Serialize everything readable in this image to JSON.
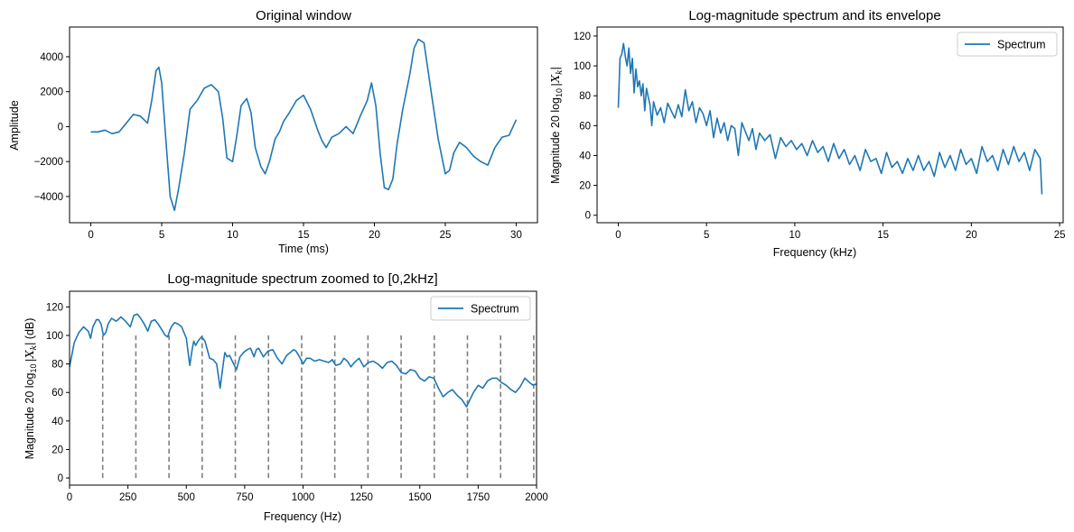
{
  "chart_data": [
    {
      "id": "wave",
      "type": "line",
      "title": "Original window",
      "xlabel": "Time (ms)",
      "ylabel": "Amplitude",
      "xlim": [
        -1.5,
        31.5
      ],
      "ylim": [
        -5500,
        5700
      ],
      "xticks": [
        0,
        5,
        10,
        15,
        20,
        25,
        30
      ],
      "xtick_labels": [
        "0",
        "5",
        "10",
        "15",
        "20",
        "25",
        "30"
      ],
      "yticks": [
        -4000,
        -2000,
        0,
        2000,
        4000
      ],
      "ytick_labels": [
        "−4000",
        "−2000",
        "0",
        "2000",
        "4000"
      ],
      "grid": false,
      "series": [
        {
          "color": "#1f77b4",
          "x": [
            0,
            0.5,
            1,
            1.5,
            2,
            2.5,
            3,
            3.5,
            4,
            4.3,
            4.6,
            4.8,
            5,
            5.3,
            5.6,
            5.9,
            6.2,
            6.6,
            7,
            7.5,
            8,
            8.5,
            9,
            9.3,
            9.6,
            10,
            10.3,
            10.6,
            11,
            11.3,
            11.6,
            12,
            12.3,
            12.6,
            13,
            13.3,
            13.6,
            14,
            14.5,
            15,
            15.5,
            16,
            16.3,
            16.6,
            17,
            17.5,
            18,
            18.5,
            19,
            19.5,
            19.8,
            20.1,
            20.4,
            20.7,
            21,
            21.3,
            21.6,
            22,
            22.5,
            22.8,
            23.1,
            23.5,
            24,
            24.5,
            25,
            25.3,
            25.6,
            26,
            26.5,
            27,
            27.5,
            28,
            28.5,
            29,
            29.5,
            30
          ],
          "y": [
            -300,
            -300,
            -200,
            -400,
            -300,
            200,
            700,
            600,
            200,
            1500,
            3200,
            3400,
            2500,
            -800,
            -4000,
            -4800,
            -3500,
            -1500,
            1000,
            1500,
            2200,
            2400,
            2000,
            500,
            -1800,
            -2000,
            -500,
            1200,
            1600,
            800,
            -1200,
            -2300,
            -2700,
            -2000,
            -700,
            -300,
            300,
            800,
            1500,
            1800,
            1000,
            -200,
            -800,
            -1200,
            -600,
            -400,
            0,
            -400,
            600,
            1500,
            2500,
            1200,
            -1500,
            -3500,
            -3600,
            -3000,
            -1000,
            1000,
            3000,
            4500,
            5000,
            4800,
            2000,
            -700,
            -2700,
            -2500,
            -1500,
            -900,
            -1200,
            -1700,
            -2000,
            -2200,
            -1200,
            -600,
            -500,
            400
          ]
        }
      ]
    },
    {
      "id": "spec",
      "type": "line",
      "title": "Log-magnitude spectrum and its envelope",
      "xlabel": "Frequency (kHz)",
      "ylabel_prefix": "Magnitude 20 log",
      "ylabel_sub": "10",
      "ylabel_suffix": "|X",
      "ylabel_sub2": "k",
      "ylabel_end": "|",
      "xlim": [
        -1.2,
        25.2
      ],
      "ylim": [
        -5,
        126
      ],
      "xticks": [
        0,
        5,
        10,
        15,
        20,
        25
      ],
      "xtick_labels": [
        "0",
        "5",
        "10",
        "15",
        "20",
        "25"
      ],
      "yticks": [
        0,
        20,
        40,
        60,
        80,
        100,
        120
      ],
      "ytick_labels": [
        "0",
        "20",
        "40",
        "60",
        "80",
        "100",
        "120"
      ],
      "legend": [
        "Spectrum"
      ],
      "legend_loc": "upper right",
      "grid": false,
      "series": [
        {
          "name": "Spectrum",
          "color": "#1f77b4",
          "x": [
            0,
            0.1,
            0.2,
            0.3,
            0.4,
            0.5,
            0.6,
            0.7,
            0.8,
            0.9,
            1.0,
            1.1,
            1.2,
            1.3,
            1.4,
            1.5,
            1.6,
            1.7,
            1.8,
            1.9,
            2.0,
            2.2,
            2.4,
            2.6,
            2.8,
            3.0,
            3.2,
            3.4,
            3.6,
            3.8,
            4.0,
            4.2,
            4.4,
            4.6,
            4.8,
            5.0,
            5.2,
            5.4,
            5.6,
            5.8,
            6.0,
            6.2,
            6.4,
            6.6,
            6.8,
            7.0,
            7.2,
            7.4,
            7.6,
            7.8,
            8.0,
            8.3,
            8.6,
            8.9,
            9.2,
            9.5,
            9.8,
            10.1,
            10.4,
            10.7,
            11.0,
            11.3,
            11.6,
            11.9,
            12.2,
            12.5,
            12.8,
            13.1,
            13.4,
            13.7,
            14.0,
            14.3,
            14.6,
            14.9,
            15.2,
            15.5,
            15.8,
            16.1,
            16.4,
            16.7,
            17.0,
            17.3,
            17.6,
            17.9,
            18.2,
            18.5,
            18.8,
            19.1,
            19.4,
            19.7,
            20.0,
            20.3,
            20.6,
            20.9,
            21.2,
            21.5,
            21.8,
            22.1,
            22.4,
            22.7,
            23.0,
            23.3,
            23.6,
            23.9,
            24.0
          ],
          "y": [
            72,
            105,
            108,
            115,
            106,
            100,
            112,
            95,
            105,
            82,
            98,
            86,
            90,
            80,
            88,
            70,
            85,
            79,
            74,
            60,
            76,
            67,
            72,
            62,
            75,
            70,
            65,
            74,
            66,
            84,
            70,
            76,
            62,
            72,
            68,
            60,
            70,
            52,
            65,
            55,
            62,
            50,
            60,
            58,
            40,
            62,
            56,
            50,
            58,
            44,
            55,
            50,
            54,
            38,
            52,
            46,
            50,
            44,
            48,
            40,
            50,
            42,
            46,
            36,
            48,
            38,
            44,
            34,
            40,
            30,
            44,
            36,
            38,
            28,
            42,
            32,
            36,
            28,
            38,
            30,
            40,
            30,
            36,
            26,
            42,
            32,
            40,
            30,
            44,
            34,
            38,
            28,
            46,
            36,
            40,
            30,
            44,
            34,
            46,
            36,
            42,
            30,
            44,
            38,
            14
          ]
        }
      ]
    },
    {
      "id": "zoom",
      "type": "line",
      "title": "Log-magnitude spectrum zoomed to [0,2kHz]",
      "xlabel": "Frequency (Hz)",
      "ylabel_prefix": "Magnitude 20 log",
      "ylabel_sub": "10",
      "ylabel_suffix": "|X",
      "ylabel_sub2": "k",
      "ylabel_end": "| (dB)",
      "xlim": [
        0,
        2000
      ],
      "ylim": [
        -5,
        131
      ],
      "xticks": [
        0,
        250,
        500,
        750,
        1000,
        1250,
        1500,
        1750,
        2000
      ],
      "xtick_labels": [
        "0",
        "250",
        "500",
        "750",
        "1000",
        "1250",
        "1500",
        "1750",
        "2000"
      ],
      "yticks": [
        0,
        20,
        40,
        60,
        80,
        100,
        120
      ],
      "ytick_labels": [
        "0",
        "20",
        "40",
        "60",
        "80",
        "100",
        "120"
      ],
      "legend": [
        "Spectrum"
      ],
      "legend_loc": "upper right",
      "grid": false,
      "vlines": {
        "x": [
          142,
          284,
          426,
          568,
          710,
          852,
          994,
          1136,
          1278,
          1420,
          1562,
          1704,
          1846,
          1988
        ],
        "ymin": 0,
        "ymax": 100,
        "color": "#808080"
      },
      "series": [
        {
          "name": "Spectrum",
          "color": "#1f77b4",
          "x": [
            0,
            20,
            40,
            60,
            80,
            90,
            100,
            115,
            125,
            135,
            145,
            155,
            165,
            180,
            200,
            220,
            240,
            260,
            275,
            290,
            305,
            320,
            335,
            350,
            365,
            380,
            395,
            410,
            420,
            430,
            440,
            450,
            465,
            480,
            500,
            515,
            525,
            532,
            540,
            550,
            565,
            580,
            600,
            615,
            630,
            645,
            655,
            665,
            675,
            685,
            700,
            715,
            730,
            745,
            760,
            775,
            790,
            800,
            810,
            830,
            850,
            870,
            890,
            910,
            930,
            945,
            960,
            970,
            985,
            1000,
            1015,
            1030,
            1050,
            1070,
            1090,
            1110,
            1125,
            1140,
            1160,
            1175,
            1190,
            1205,
            1220,
            1240,
            1260,
            1280,
            1300,
            1320,
            1340,
            1360,
            1380,
            1400,
            1420,
            1440,
            1460,
            1480,
            1500,
            1520,
            1540,
            1560,
            1580,
            1600,
            1620,
            1640,
            1660,
            1680,
            1700,
            1715,
            1730,
            1750,
            1770,
            1790,
            1810,
            1830,
            1850,
            1870,
            1890,
            1910,
            1930,
            1950,
            1970,
            1985,
            2000
          ],
          "y": [
            78,
            95,
            102,
            106,
            103,
            98,
            106,
            111,
            111,
            108,
            100,
            102,
            108,
            112,
            110,
            113,
            110,
            106,
            114,
            115,
            112,
            108,
            103,
            110,
            111,
            108,
            104,
            100,
            99,
            104,
            107,
            109,
            108,
            106,
            98,
            79,
            90,
            96,
            93,
            96,
            99,
            96,
            84,
            83,
            80,
            63,
            76,
            88,
            85,
            86,
            81,
            76,
            85,
            88,
            90,
            91,
            85,
            90,
            91,
            85,
            89,
            90,
            84,
            80,
            86,
            88,
            90,
            89,
            85,
            80,
            84,
            84,
            82,
            83,
            82,
            81,
            83,
            79,
            80,
            84,
            82,
            78,
            81,
            84,
            78,
            81,
            82,
            80,
            77,
            81,
            82,
            79,
            74,
            73,
            76,
            75,
            70,
            68,
            71,
            70,
            63,
            57,
            60,
            62,
            58,
            55,
            50,
            55,
            60,
            65,
            63,
            68,
            70,
            70,
            67,
            65,
            62,
            60,
            64,
            70,
            67,
            65,
            66
          ]
        }
      ]
    }
  ]
}
